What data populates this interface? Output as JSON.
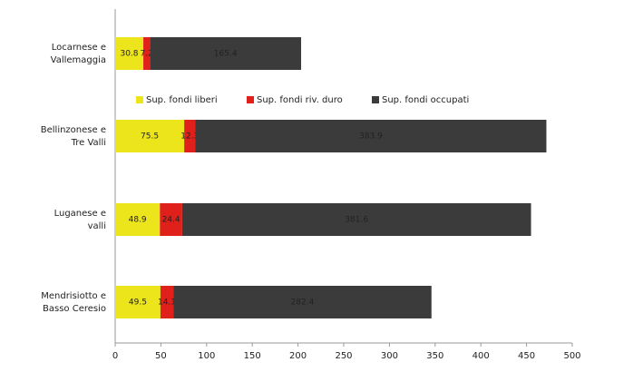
{
  "chart_data": {
    "type": "stacked-barh",
    "categories": [
      [
        "Locarnese e",
        "Vallemaggia"
      ],
      [
        "Bellinzonese e",
        "Tre Valli"
      ],
      [
        "Luganese e",
        "valli"
      ],
      [
        "Mendrisiotto e",
        "Basso Ceresio"
      ]
    ],
    "series": [
      {
        "name": "Sup. fondi liberi",
        "color": "#ede51c",
        "values": [
          30.8,
          75.5,
          48.9,
          49.5
        ]
      },
      {
        "name": "Sup. fondi riv. duro",
        "color": "#e0201b",
        "values": [
          7.2,
          12.3,
          24.4,
          14.1
        ]
      },
      {
        "name": "Sup. fondi occupati",
        "color": "#3b3b3b",
        "values": [
          165.4,
          383.9,
          381.6,
          282.4
        ]
      }
    ],
    "xlim": [
      0,
      500
    ],
    "xticks": [
      0,
      50,
      100,
      150,
      200,
      250,
      300,
      350,
      400,
      450,
      500
    ]
  }
}
